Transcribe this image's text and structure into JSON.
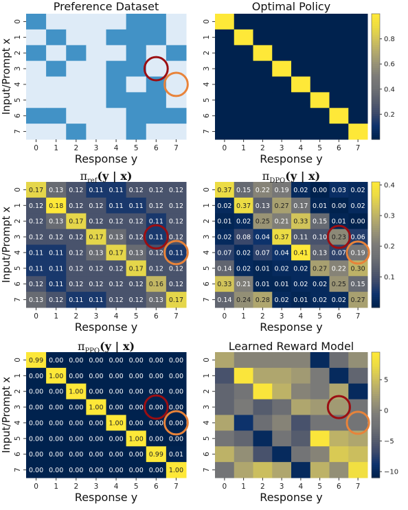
{
  "chart_data": [
    {
      "type": "heatmap",
      "title": "Preference Dataset",
      "xlabel": "Response y",
      "ylabel": "Input/Prompt x",
      "x_ticks": [
        "0",
        "1",
        "2",
        "3",
        "4",
        "5",
        "6",
        "7"
      ],
      "y_ticks": [
        "0",
        "1",
        "2",
        "3",
        "4",
        "5",
        "6",
        "7"
      ],
      "value_meaning": "1 = dark blue, 0 = light blue",
      "colors": {
        "high": "#4292c6",
        "low": "#deebf7"
      },
      "values": [
        [
          1,
          0,
          0,
          0,
          0,
          1,
          1,
          0
        ],
        [
          0,
          1,
          0,
          0,
          1,
          1,
          1,
          0
        ],
        [
          1,
          0,
          1,
          0,
          0,
          1,
          0,
          1
        ],
        [
          0,
          1,
          0,
          0,
          1,
          1,
          0,
          0
        ],
        [
          0,
          0,
          0,
          0,
          1,
          0,
          1,
          0
        ],
        [
          0,
          0,
          0,
          0,
          1,
          1,
          1,
          0
        ],
        [
          1,
          1,
          0,
          0,
          0,
          1,
          1,
          1
        ],
        [
          0,
          0,
          1,
          0,
          0,
          1,
          0,
          0
        ]
      ],
      "circles": [
        {
          "row": 3,
          "col": 6,
          "color": "#9b0e12"
        },
        {
          "row": 4,
          "col": 7,
          "color": "#e8833a"
        }
      ]
    },
    {
      "type": "heatmap",
      "title": "Optimal Policy",
      "xlabel": "Response y",
      "ylabel": "",
      "x_ticks": [
        "0",
        "1",
        "2",
        "3",
        "4",
        "5",
        "6",
        "7"
      ],
      "y_ticks": [
        "0",
        "1",
        "2",
        "3",
        "4",
        "5",
        "6",
        "7"
      ],
      "colormap": "cividis",
      "vmin": 0,
      "vmax": 1,
      "colorbar_ticks": [
        "0.8",
        "0.6",
        "0.4",
        "0.2"
      ],
      "colorbar_tick_values": [
        0.8,
        0.6,
        0.4,
        0.2
      ],
      "values": [
        [
          1,
          0,
          0,
          0,
          0,
          0,
          0,
          0
        ],
        [
          0,
          1,
          0,
          0,
          0,
          0,
          0,
          0
        ],
        [
          0,
          0,
          1,
          0,
          0,
          0,
          0,
          0
        ],
        [
          0,
          0,
          0,
          1,
          0,
          0,
          0,
          0
        ],
        [
          0,
          0,
          0,
          0,
          1,
          0,
          0,
          0
        ],
        [
          0,
          0,
          0,
          0,
          0,
          1,
          0,
          0
        ],
        [
          0,
          0,
          0,
          0,
          0,
          0,
          1,
          0
        ],
        [
          0,
          0,
          0,
          0,
          0,
          0,
          0,
          1
        ]
      ]
    },
    {
      "type": "heatmap",
      "title_math": {
        "base": "π",
        "sub": "ref",
        "arg": "(y | x)"
      },
      "xlabel": "Response y",
      "ylabel": "Input/Prompt x",
      "x_ticks": [
        "0",
        "1",
        "2",
        "3",
        "4",
        "5",
        "6",
        "7"
      ],
      "y_ticks": [
        "0",
        "1",
        "2",
        "3",
        "4",
        "5",
        "6",
        "7"
      ],
      "colormap": "cividis",
      "vmin": 0.1,
      "vmax": 0.18,
      "show_values": true,
      "values": [
        [
          0.17,
          0.13,
          0.12,
          0.11,
          0.11,
          0.12,
          0.12,
          0.12
        ],
        [
          0.12,
          0.18,
          0.12,
          0.12,
          0.11,
          0.11,
          0.12,
          0.12
        ],
        [
          0.12,
          0.13,
          0.17,
          0.12,
          0.12,
          0.12,
          0.11,
          0.12
        ],
        [
          0.12,
          0.12,
          0.12,
          0.17,
          0.13,
          0.12,
          0.11,
          0.12
        ],
        [
          0.11,
          0.11,
          0.12,
          0.13,
          0.17,
          0.13,
          0.12,
          0.11
        ],
        [
          0.11,
          0.11,
          0.12,
          0.12,
          0.12,
          0.17,
          0.12,
          0.12
        ],
        [
          0.12,
          0.11,
          0.12,
          0.12,
          0.12,
          0.12,
          0.16,
          0.12
        ],
        [
          0.13,
          0.12,
          0.11,
          0.11,
          0.12,
          0.12,
          0.13,
          0.17
        ]
      ],
      "circles": [
        {
          "row": 3,
          "col": 6,
          "color": "#9b0e12"
        },
        {
          "row": 4,
          "col": 7,
          "color": "#e8833a"
        }
      ]
    },
    {
      "type": "heatmap",
      "title_math": {
        "base": "π",
        "sub": "DPO",
        "arg": "(y | x)"
      },
      "xlabel": "Response y",
      "ylabel": "",
      "x_ticks": [
        "0",
        "1",
        "2",
        "3",
        "4",
        "5",
        "6",
        "7"
      ],
      "y_ticks": [
        "0",
        "1",
        "2",
        "3",
        "4",
        "5",
        "6",
        "7"
      ],
      "colormap": "cividis",
      "vmin": 0,
      "vmax": 0.41,
      "show_values": true,
      "colorbar_ticks": [
        "0.4",
        "0.3",
        "0.2",
        "0.1"
      ],
      "colorbar_tick_values": [
        0.4,
        0.3,
        0.2,
        0.1
      ],
      "values": [
        [
          0.37,
          0.15,
          0.22,
          0.19,
          0.02,
          0.0,
          0.03,
          0.02
        ],
        [
          0.02,
          0.37,
          0.13,
          0.27,
          0.17,
          0.01,
          0.0,
          0.02
        ],
        [
          0.01,
          0.02,
          0.25,
          0.21,
          0.33,
          0.15,
          0.01,
          0.0
        ],
        [
          0.02,
          0.08,
          0.04,
          0.37,
          0.11,
          0.1,
          0.23,
          0.06
        ],
        [
          0.07,
          0.02,
          0.07,
          0.04,
          0.41,
          0.13,
          0.07,
          0.19
        ],
        [
          0.14,
          0.02,
          0.01,
          0.02,
          0.02,
          0.27,
          0.22,
          0.3
        ],
        [
          0.33,
          0.21,
          0.01,
          0.01,
          0.02,
          0.02,
          0.25,
          0.15
        ],
        [
          0.14,
          0.24,
          0.28,
          0.02,
          0.01,
          0.02,
          0.02,
          0.27
        ]
      ],
      "circles": [
        {
          "row": 3,
          "col": 6,
          "color": "#9b0e12"
        },
        {
          "row": 4,
          "col": 7,
          "color": "#e8833a"
        }
      ]
    },
    {
      "type": "heatmap",
      "title_math": {
        "base": "π",
        "sub": "PPO",
        "arg": "(y | x)"
      },
      "xlabel": "Response y",
      "ylabel": "Input/Prompt x",
      "x_ticks": [
        "0",
        "1",
        "2",
        "3",
        "4",
        "5",
        "6",
        "7"
      ],
      "y_ticks": [
        "0",
        "1",
        "2",
        "3",
        "4",
        "5",
        "6",
        "7"
      ],
      "colormap": "cividis",
      "vmin": 0,
      "vmax": 1,
      "show_values": true,
      "values": [
        [
          0.99,
          0.0,
          0.0,
          0.0,
          0.0,
          0.0,
          0.0,
          0.0
        ],
        [
          0.0,
          1.0,
          0.0,
          0.0,
          0.0,
          0.0,
          0.0,
          0.0
        ],
        [
          0.0,
          0.0,
          1.0,
          0.0,
          0.0,
          0.0,
          0.0,
          0.0
        ],
        [
          0.0,
          0.0,
          0.0,
          1.0,
          0.0,
          0.0,
          0.0,
          0.0
        ],
        [
          0.0,
          0.0,
          0.0,
          0.0,
          1.0,
          0.0,
          0.0,
          0.0
        ],
        [
          0.0,
          0.0,
          0.0,
          0.0,
          0.0,
          1.0,
          0.0,
          0.0
        ],
        [
          0.0,
          0.0,
          0.0,
          0.0,
          0.0,
          0.0,
          0.99,
          0.01
        ],
        [
          0.0,
          0.0,
          0.0,
          0.0,
          0.0,
          0.0,
          0.0,
          1.0
        ]
      ],
      "circles": [
        {
          "row": 3,
          "col": 6,
          "color": "#9b0e12"
        },
        {
          "row": 4,
          "col": 7,
          "color": "#e8833a"
        }
      ]
    },
    {
      "type": "heatmap",
      "title": "Learned Reward Model",
      "xlabel": "Response y",
      "ylabel": "",
      "x_ticks": [
        "0",
        "1",
        "2",
        "3",
        "4",
        "5",
        "6",
        "7"
      ],
      "y_ticks": [
        "0",
        "1",
        "2",
        "3",
        "4",
        "5",
        "6",
        "7"
      ],
      "colormap": "cividis",
      "vmin": -11,
      "vmax": 9.5,
      "colorbar_ticks": [
        "5",
        "0",
        "−5",
        "−10"
      ],
      "colorbar_tick_values": [
        5,
        0,
        -5,
        -10
      ],
      "values": [
        [
          3,
          0,
          0,
          0,
          0,
          -10,
          -3,
          1
        ],
        [
          -6,
          9,
          3,
          3,
          2,
          -1,
          -10,
          -4
        ],
        [
          -4,
          -2,
          9,
          4,
          0,
          -1,
          3,
          -10
        ],
        [
          -4,
          -1,
          -5,
          -3,
          3,
          2,
          2,
          -2
        ],
        [
          3,
          -9,
          -3,
          0,
          -6,
          -2,
          -2,
          -2
        ],
        [
          -2,
          -4,
          -10,
          -2,
          -5,
          9,
          4,
          3
        ],
        [
          4,
          1,
          -6,
          -10,
          -2,
          0,
          6,
          5
        ],
        [
          -2,
          3,
          5,
          3,
          -10,
          4,
          1,
          8
        ]
      ],
      "circles": [
        {
          "row": 3,
          "col": 6,
          "color": "#9b0e12"
        },
        {
          "row": 4,
          "col": 7,
          "color": "#e8833a"
        }
      ]
    }
  ]
}
